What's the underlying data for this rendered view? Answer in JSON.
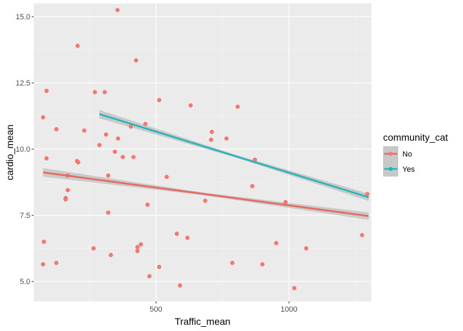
{
  "chart_data": {
    "type": "scatter",
    "title": "",
    "xlabel": "Traffic_mean",
    "ylabel": "cardio_mean",
    "xlim": [
      40,
      1310
    ],
    "ylim": [
      4.25,
      15.5
    ],
    "xticks": [
      500,
      1000
    ],
    "yticks": [
      5.0,
      7.5,
      10.0,
      12.5,
      15.0
    ],
    "xtick_labels": [
      "500",
      "1000"
    ],
    "ytick_labels": [
      "5.0",
      "7.5",
      "10.0",
      "12.5",
      "15.0"
    ],
    "grid": true,
    "legend": {
      "title": "community_cat",
      "position": "right",
      "entries": [
        "No",
        "Yes"
      ]
    },
    "colors": {
      "No": "#F8766D",
      "Yes": "#00BFC4",
      "No_line": "#E76A62",
      "Yes_line": "#2BB5BA",
      "panel": "#EBEBEB",
      "grid_major": "#FFFFFF"
    },
    "series": [
      {
        "name": "No",
        "points": [
          [
            355,
            15.25
          ],
          [
            205,
            13.9
          ],
          [
            425,
            13.35
          ],
          [
            88,
            12.2
          ],
          [
            270,
            12.15
          ],
          [
            307,
            12.15
          ],
          [
            512,
            11.85
          ],
          [
            75,
            11.2
          ],
          [
            630,
            11.65
          ],
          [
            807,
            11.6
          ],
          [
            460,
            10.95
          ],
          [
            125,
            10.75
          ],
          [
            230,
            10.7
          ],
          [
            405,
            10.85
          ],
          [
            710,
            10.65
          ],
          [
            765,
            10.4
          ],
          [
            707,
            10.35
          ],
          [
            312,
            10.55
          ],
          [
            357,
            10.4
          ],
          [
            287,
            10.15
          ],
          [
            345,
            9.9
          ],
          [
            375,
            9.7
          ],
          [
            415,
            9.7
          ],
          [
            88,
            9.65
          ],
          [
            207,
            9.5
          ],
          [
            203,
            9.55
          ],
          [
            872,
            9.6
          ],
          [
            320,
            9.0
          ],
          [
            540,
            8.95
          ],
          [
            168,
            9.0
          ],
          [
            862,
            8.6
          ],
          [
            168,
            8.45
          ],
          [
            160,
            8.15
          ],
          [
            160,
            8.1
          ],
          [
            685,
            8.05
          ],
          [
            987,
            8.0
          ],
          [
            468,
            7.9
          ],
          [
            320,
            7.6
          ],
          [
            1295,
            8.3
          ],
          [
            578,
            6.8
          ],
          [
            1275,
            6.75
          ],
          [
            78,
            6.5
          ],
          [
            618,
            6.65
          ],
          [
            443,
            6.4
          ],
          [
            952,
            6.45
          ],
          [
            430,
            6.3
          ],
          [
            430,
            6.15
          ],
          [
            265,
            6.25
          ],
          [
            330,
            6.0
          ],
          [
            1065,
            6.25
          ],
          [
            75,
            5.65
          ],
          [
            125,
            5.7
          ],
          [
            787,
            5.7
          ],
          [
            900,
            5.65
          ],
          [
            512,
            5.55
          ],
          [
            475,
            5.2
          ],
          [
            590,
            4.85
          ],
          [
            1020,
            4.75
          ]
        ],
        "fit": {
          "x": [
            75,
            1300
          ],
          "y": [
            9.12,
            7.47
          ]
        }
      },
      {
        "name": "Yes",
        "points": [],
        "fit": {
          "x": [
            287,
            1300
          ],
          "y": [
            11.32,
            8.18
          ]
        }
      }
    ]
  }
}
